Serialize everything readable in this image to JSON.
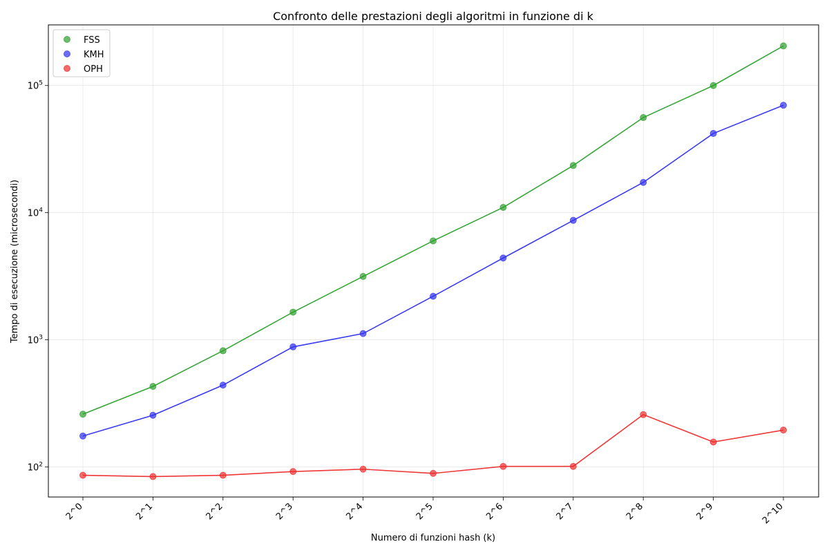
{
  "chart_data": {
    "type": "line",
    "title": "Confronto delle prestazioni degli algoritmi in funzione di k",
    "xlabel": "Numero di funzioni hash (k)",
    "ylabel": "Tempo di esecuzione (microsecondi)",
    "yscale": "log",
    "ylim": [
      58,
      300000
    ],
    "grid": true,
    "legend_position": "top-left",
    "categories": [
      "2^0",
      "2^1",
      "2^2",
      "2^3",
      "2^4",
      "2^5",
      "2^6",
      "2^7",
      "2^8",
      "2^9",
      "2^10"
    ],
    "y_ticks": [
      {
        "value": 100,
        "base": "10",
        "exp": "2"
      },
      {
        "value": 1000,
        "base": "10",
        "exp": "3"
      },
      {
        "value": 10000,
        "base": "10",
        "exp": "4"
      },
      {
        "value": 100000,
        "base": "10",
        "exp": "5"
      }
    ],
    "series": [
      {
        "name": "FSS",
        "color": "#2ca02c",
        "values": [
          260,
          430,
          820,
          1650,
          3150,
          6000,
          11000,
          23500,
          56000,
          100000,
          205000
        ]
      },
      {
        "name": "KMH",
        "color": "#2f2ff0",
        "values": [
          175,
          255,
          440,
          880,
          1120,
          2200,
          4400,
          8700,
          17300,
          42000,
          70000
        ]
      },
      {
        "name": "OPH",
        "color": "#ee2c2c",
        "values": [
          86,
          84,
          86,
          92,
          96,
          89,
          101,
          101,
          258,
          157,
          195
        ]
      }
    ]
  }
}
